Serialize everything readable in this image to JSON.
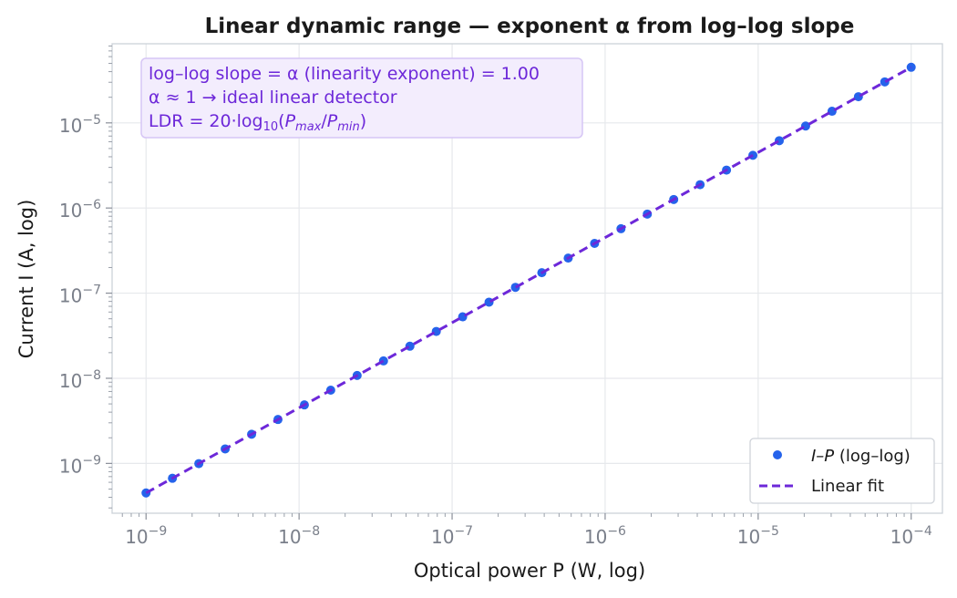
{
  "chart_data": {
    "type": "scatter",
    "title": "Linear dynamic range — exponent α from log–log slope",
    "xlabel": "Optical power  P  (W, log)",
    "ylabel": "Current  I  (A, log)",
    "x_scale": "log",
    "y_scale": "log",
    "xlim": [
      6e-10,
      0.00016
    ],
    "ylim": [
      2.6e-10,
      8.5e-05
    ],
    "x_ticks": [
      {
        "base": "10",
        "exp": "−9",
        "value": 1e-09
      },
      {
        "base": "10",
        "exp": "−8",
        "value": 1e-08
      },
      {
        "base": "10",
        "exp": "−7",
        "value": 1e-07
      },
      {
        "base": "10",
        "exp": "−6",
        "value": 1e-06
      },
      {
        "base": "10",
        "exp": "−5",
        "value": 1e-05
      },
      {
        "base": "10",
        "exp": "−4",
        "value": 0.0001
      }
    ],
    "y_ticks": [
      {
        "base": "10",
        "exp": "−9",
        "value": 1e-09
      },
      {
        "base": "10",
        "exp": "−8",
        "value": 1e-08
      },
      {
        "base": "10",
        "exp": "−7",
        "value": 1e-07
      },
      {
        "base": "10",
        "exp": "−6",
        "value": 1e-06
      },
      {
        "base": "10",
        "exp": "−5",
        "value": 1e-05
      }
    ],
    "grid": true,
    "series": [
      {
        "name": "I–P (log–log)",
        "kind": "scatter",
        "color": "#2563eb",
        "x": [
          1e-09,
          1.487e-09,
          2.212e-09,
          3.29e-09,
          4.894e-09,
          7.279e-09,
          1.083e-08,
          1.61e-08,
          2.395e-08,
          3.562e-08,
          5.298e-08,
          7.88e-08,
          1.172e-07,
          1.743e-07,
          2.593e-07,
          3.857e-07,
          5.736e-07,
          8.532e-07,
          1.269e-06,
          1.887e-06,
          2.807e-06,
          4.175e-06,
          6.21e-06,
          9.237e-06,
          1.374e-05,
          2.043e-05,
          3.039e-05,
          4.52e-05,
          6.723e-05,
          0.0001
        ],
        "y": [
          4.5e-10,
          6.69e-10,
          9.95e-10,
          1.48e-09,
          2.2e-09,
          3.28e-09,
          4.87e-09,
          7.25e-09,
          1.08e-08,
          1.6e-08,
          2.38e-08,
          3.55e-08,
          5.27e-08,
          7.84e-08,
          1.17e-07,
          1.74e-07,
          2.58e-07,
          3.84e-07,
          5.71e-07,
          8.49e-07,
          1.26e-06,
          1.88e-06,
          2.79e-06,
          4.16e-06,
          6.18e-06,
          9.19e-06,
          1.37e-05,
          2.03e-05,
          3.03e-05,
          4.5e-05
        ]
      },
      {
        "name": "Linear fit",
        "kind": "line",
        "style": "dashed",
        "color": "#6d28d9",
        "x": [
          1e-09,
          0.0001
        ],
        "y": [
          4.5e-10,
          4.5e-05
        ]
      }
    ],
    "annotation": {
      "lines": [
        "log–log slope = α (linearity exponent) = 1.00",
        "α ≈ 1 → ideal linear detector",
        "LDR = 20·log10(Pmax/Pmin)"
      ],
      "ldr_parts": [
        "LDR = 20·log",
        "10",
        "(",
        "P",
        "max",
        "/",
        "P",
        "min",
        ")"
      ],
      "placement": "top-left",
      "color": "#6d28d9",
      "background": "#f3edfd"
    },
    "legend": {
      "placement": "bottom-right",
      "entries": [
        {
          "label_italic": "I–P",
          "label_rest": " (log–log)"
        },
        {
          "label": "Linear fit"
        }
      ]
    }
  }
}
